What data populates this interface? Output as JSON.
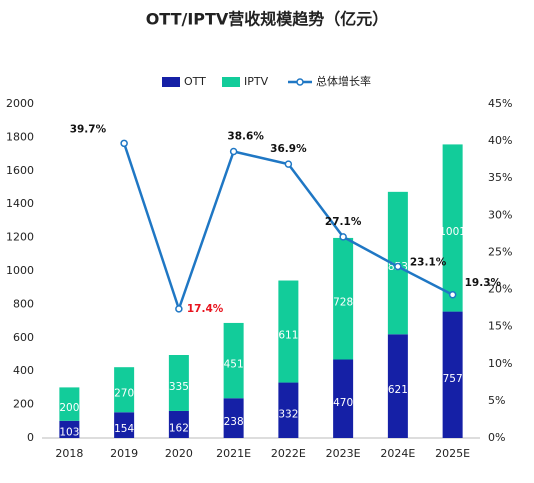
{
  "chart_data": {
    "type": "bar-line",
    "title": "OTT/IPTV营收规模趋势（亿元）",
    "categories": [
      "2018",
      "2019",
      "2020",
      "2021E",
      "2022E",
      "2023E",
      "2024E",
      "2025E"
    ],
    "series": [
      {
        "name": "OTT",
        "color": "#1520a6",
        "values": [
          103,
          154,
          162,
          238,
          332,
          470,
          621,
          757
        ]
      },
      {
        "name": "IPTV",
        "color": "#12cc9a",
        "values": [
          200,
          270,
          335,
          451,
          611,
          728,
          853,
          1001
        ]
      },
      {
        "name": "总体增长率",
        "color": "#1f77c4",
        "axis": "y2",
        "values": [
          null,
          39.7,
          17.4,
          38.6,
          36.9,
          27.1,
          23.1,
          19.3
        ],
        "value_labels": [
          null,
          "39.7%",
          "17.4%",
          "38.6%",
          "36.9%",
          "27.1%",
          "23.1%",
          "19.3%"
        ],
        "value_label_colors": [
          null,
          "#111111",
          "#e8141e",
          "#111111",
          "#111111",
          "#111111",
          "#111111",
          "#111111"
        ]
      }
    ],
    "ylim": [
      0,
      2000
    ],
    "yticks": [
      0,
      200,
      400,
      600,
      800,
      1000,
      1200,
      1400,
      1600,
      1800,
      2000
    ],
    "y2lim": [
      0,
      45
    ],
    "y2ticks": [
      {
        "value": 0,
        "label": "0%"
      },
      {
        "value": 5,
        "label": "5%"
      },
      {
        "value": 10,
        "label": "10%"
      },
      {
        "value": 15,
        "label": "15%"
      },
      {
        "value": 20,
        "label": "20%"
      },
      {
        "value": 25,
        "label": "25%"
      },
      {
        "value": 30,
        "label": "30%"
      },
      {
        "value": 35,
        "label": "35%"
      },
      {
        "value": 40,
        "label": "40%"
      },
      {
        "value": 45,
        "label": "45%"
      }
    ],
    "grid": false,
    "legend": "top"
  }
}
